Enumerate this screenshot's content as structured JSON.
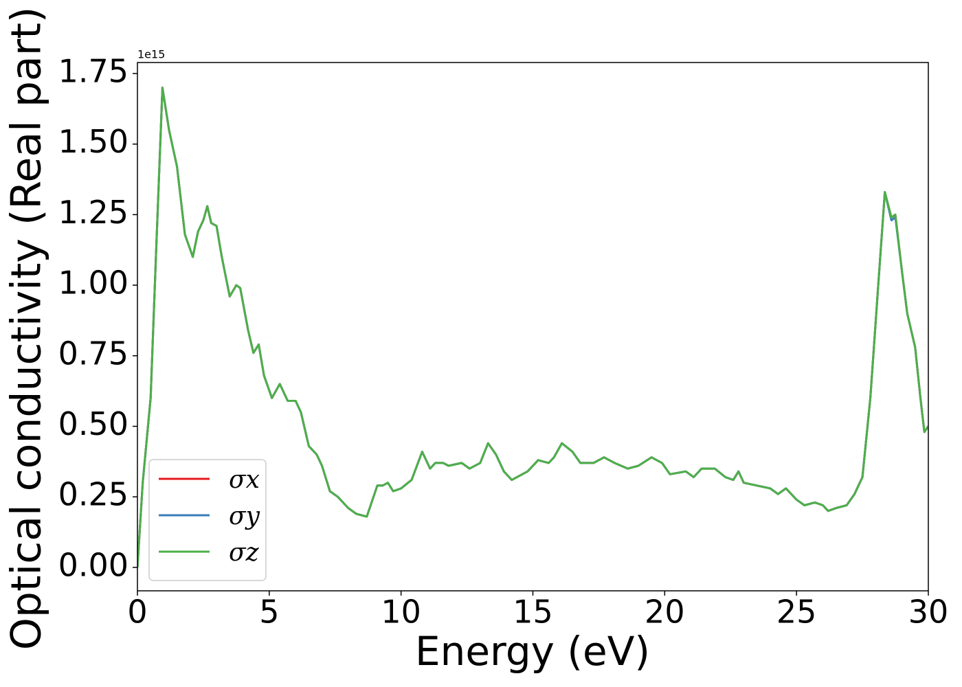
{
  "chart_data": {
    "type": "line",
    "x_label": "Energy (eV)",
    "y_label": "Optical conductivity (Real part)",
    "y_offset_label": "1e15",
    "x": [
      0,
      0.2,
      0.5,
      0.7,
      0.95,
      1.2,
      1.5,
      1.8,
      2.1,
      2.3,
      2.5,
      2.65,
      2.8,
      3.0,
      3.2,
      3.5,
      3.75,
      3.9,
      4.2,
      4.4,
      4.6,
      4.8,
      5.1,
      5.4,
      5.7,
      6.0,
      6.2,
      6.5,
      6.8,
      7.0,
      7.3,
      7.6,
      8.0,
      8.3,
      8.7,
      9.1,
      9.3,
      9.5,
      9.7,
      10.0,
      10.4,
      10.8,
      11.1,
      11.3,
      11.6,
      11.8,
      12.3,
      12.6,
      13.0,
      13.3,
      13.6,
      13.9,
      14.2,
      14.8,
      15.2,
      15.6,
      15.8,
      16.1,
      16.5,
      16.8,
      17.3,
      17.7,
      18.1,
      18.6,
      19.0,
      19.5,
      19.9,
      20.2,
      20.8,
      21.1,
      21.4,
      21.9,
      22.3,
      22.6,
      22.8,
      23.0,
      23.5,
      24.0,
      24.3,
      24.6,
      25.0,
      25.3,
      25.7,
      26.0,
      26.2,
      26.5,
      26.9,
      27.2,
      27.5,
      27.8,
      28.1,
      28.35,
      28.6,
      28.75,
      29.0,
      29.2,
      29.5,
      29.7,
      29.85,
      30.0
    ],
    "series": [
      {
        "name": "σx",
        "color": "#e41a1c",
        "values": [
          0.0,
          0.3,
          0.6,
          1.1,
          1.7,
          1.55,
          1.42,
          1.18,
          1.1,
          1.19,
          1.23,
          1.28,
          1.22,
          1.21,
          1.1,
          0.96,
          1.0,
          0.99,
          0.84,
          0.76,
          0.79,
          0.68,
          0.6,
          0.65,
          0.59,
          0.59,
          0.55,
          0.43,
          0.4,
          0.36,
          0.27,
          0.25,
          0.21,
          0.19,
          0.18,
          0.29,
          0.29,
          0.3,
          0.27,
          0.28,
          0.31,
          0.41,
          0.35,
          0.37,
          0.37,
          0.36,
          0.37,
          0.35,
          0.37,
          0.44,
          0.4,
          0.34,
          0.31,
          0.34,
          0.38,
          0.37,
          0.39,
          0.44,
          0.41,
          0.37,
          0.37,
          0.39,
          0.37,
          0.35,
          0.36,
          0.39,
          0.37,
          0.33,
          0.34,
          0.32,
          0.35,
          0.35,
          0.32,
          0.31,
          0.34,
          0.3,
          0.29,
          0.28,
          0.26,
          0.28,
          0.24,
          0.22,
          0.23,
          0.22,
          0.2,
          0.21,
          0.22,
          0.26,
          0.32,
          0.6,
          1.0,
          1.33,
          1.24,
          1.25,
          1.05,
          0.9,
          0.78,
          0.6,
          0.48,
          0.5
        ]
      },
      {
        "name": "σy",
        "color": "#377eb8",
        "values": [
          0.0,
          0.3,
          0.6,
          1.1,
          1.7,
          1.55,
          1.42,
          1.18,
          1.1,
          1.19,
          1.23,
          1.28,
          1.22,
          1.21,
          1.1,
          0.96,
          1.0,
          0.99,
          0.84,
          0.76,
          0.79,
          0.68,
          0.6,
          0.65,
          0.59,
          0.59,
          0.55,
          0.43,
          0.4,
          0.36,
          0.27,
          0.25,
          0.21,
          0.19,
          0.18,
          0.29,
          0.29,
          0.3,
          0.27,
          0.28,
          0.31,
          0.41,
          0.35,
          0.37,
          0.37,
          0.36,
          0.37,
          0.35,
          0.37,
          0.44,
          0.4,
          0.34,
          0.31,
          0.34,
          0.38,
          0.37,
          0.39,
          0.44,
          0.41,
          0.37,
          0.37,
          0.39,
          0.37,
          0.35,
          0.36,
          0.39,
          0.37,
          0.33,
          0.34,
          0.32,
          0.35,
          0.35,
          0.32,
          0.31,
          0.34,
          0.3,
          0.29,
          0.28,
          0.26,
          0.28,
          0.24,
          0.22,
          0.23,
          0.22,
          0.2,
          0.21,
          0.22,
          0.26,
          0.32,
          0.6,
          1.0,
          1.33,
          1.23,
          1.24,
          1.05,
          0.9,
          0.78,
          0.6,
          0.48,
          0.5
        ]
      },
      {
        "name": "σz",
        "color": "#4daf4a",
        "values": [
          0.0,
          0.3,
          0.6,
          1.1,
          1.7,
          1.55,
          1.42,
          1.18,
          1.1,
          1.19,
          1.23,
          1.28,
          1.22,
          1.21,
          1.1,
          0.96,
          1.0,
          0.99,
          0.84,
          0.76,
          0.79,
          0.68,
          0.6,
          0.65,
          0.59,
          0.59,
          0.55,
          0.43,
          0.4,
          0.36,
          0.27,
          0.25,
          0.21,
          0.19,
          0.18,
          0.29,
          0.29,
          0.3,
          0.27,
          0.28,
          0.31,
          0.41,
          0.35,
          0.37,
          0.37,
          0.36,
          0.37,
          0.35,
          0.37,
          0.44,
          0.4,
          0.34,
          0.31,
          0.34,
          0.38,
          0.37,
          0.39,
          0.44,
          0.41,
          0.37,
          0.37,
          0.39,
          0.37,
          0.35,
          0.36,
          0.39,
          0.37,
          0.33,
          0.34,
          0.32,
          0.35,
          0.35,
          0.32,
          0.31,
          0.34,
          0.3,
          0.29,
          0.28,
          0.26,
          0.28,
          0.24,
          0.22,
          0.23,
          0.22,
          0.2,
          0.21,
          0.22,
          0.26,
          0.32,
          0.6,
          1.0,
          1.33,
          1.24,
          1.25,
          1.05,
          0.9,
          0.78,
          0.6,
          0.48,
          0.5
        ]
      }
    ],
    "xlim": [
      0,
      30
    ],
    "ylim": [
      -0.083,
      1.789
    ],
    "xticks": [
      0,
      5,
      10,
      15,
      20,
      25,
      30
    ],
    "yticks": [
      {
        "value": 0,
        "label": "0.00"
      },
      {
        "value": 0.25,
        "label": "0.25"
      },
      {
        "value": 0.5,
        "label": "0.50"
      },
      {
        "value": 0.75,
        "label": "0.75"
      },
      {
        "value": 1,
        "label": "1.00"
      },
      {
        "value": 1.25,
        "label": "1.25"
      },
      {
        "value": 1.5,
        "label": "1.50"
      },
      {
        "value": 1.75,
        "label": "1.75"
      }
    ],
    "legend": "lower left",
    "grid": false
  }
}
